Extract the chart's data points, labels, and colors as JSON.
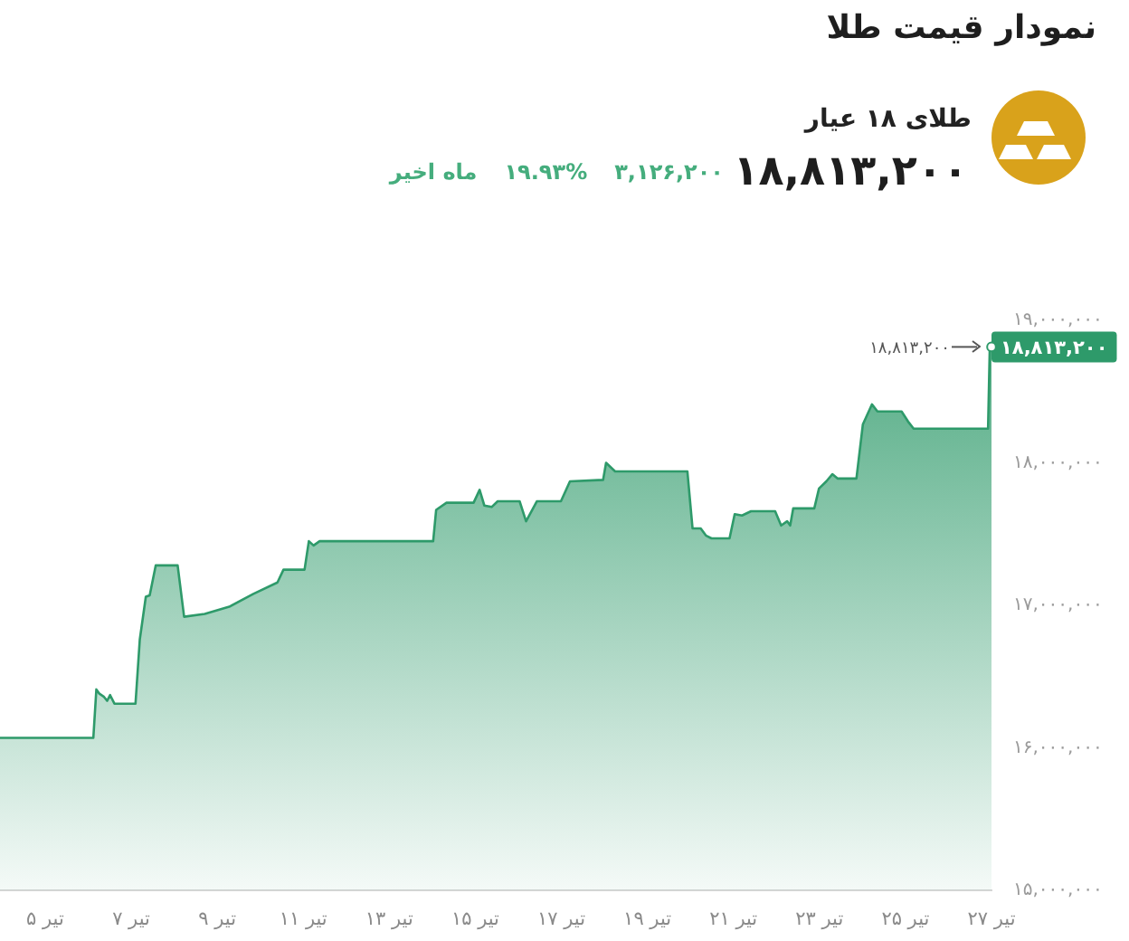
{
  "chart_data": {
    "type": "area",
    "title": "نمودار قیمت طلا",
    "subtitle": "طلای ۱۸ عیار",
    "annotations": [
      "۱۸,۸۱۳,۲۰۰",
      "۳,۱۲۶,۲۰۰",
      "۱۹.۹۳%",
      "ماه اخیر"
    ],
    "x": [
      3.95,
      6.12,
      6.19,
      6.26,
      6.36,
      6.44,
      6.51,
      6.61,
      7.1,
      7.2,
      7.34,
      7.43,
      7.57,
      8.08,
      8.23,
      8.71,
      9.28,
      9.84,
      10.4,
      10.54,
      11.03,
      11.13,
      11.24,
      11.38,
      14.02,
      14.09,
      14.33,
      14.96,
      15.1,
      15.21,
      15.38,
      15.52,
      16.03,
      16.18,
      16.43,
      16.99,
      17.2,
      17.97,
      18.04,
      18.25,
      19.93,
      20.05,
      20.24,
      20.36,
      20.49,
      20.91,
      21.03,
      21.2,
      21.41,
      21.97,
      22.11,
      22.25,
      22.32,
      22.39,
      22.88,
      22.99,
      23.16,
      23.3,
      23.42,
      23.86,
      24.01,
      24.22,
      24.35,
      24.91,
      25.06,
      25.19,
      26.92,
      26.96,
      27
    ],
    "series": [
      {
        "color": "#2e9a6a",
        "values": [
          16070000,
          16070000,
          16410000,
          16380000,
          16360000,
          16330000,
          16370000,
          16310000,
          16310000,
          16760000,
          17060000,
          17070000,
          17280000,
          17280000,
          16920000,
          16940000,
          16990000,
          17080000,
          17160000,
          17250000,
          17250000,
          17450000,
          17420000,
          17450000,
          17450000,
          17670000,
          17720000,
          17720000,
          17810000,
          17700000,
          17690000,
          17730000,
          17730000,
          17590000,
          17730000,
          17730000,
          17870000,
          17880000,
          18000000,
          17940000,
          17940000,
          17540000,
          17540000,
          17490000,
          17470000,
          17470000,
          17640000,
          17630000,
          17660000,
          17660000,
          17560000,
          17590000,
          17560000,
          17680000,
          17680000,
          17820000,
          17870000,
          17920000,
          17890000,
          17890000,
          18270000,
          18410000,
          18360000,
          18360000,
          18290000,
          18240000,
          18240000,
          18813200,
          18813200
        ],
        "value_labels": [
          null,
          null,
          null,
          null,
          null,
          null,
          null,
          null,
          null,
          null,
          null,
          null,
          null,
          null,
          null,
          null,
          null,
          null,
          null,
          null,
          null,
          null,
          null,
          null,
          null,
          null,
          null,
          null,
          null,
          null,
          null,
          null,
          null,
          null,
          null,
          null,
          null,
          null,
          null,
          null,
          null,
          null,
          null,
          null,
          null,
          null,
          null,
          null,
          null,
          null,
          null,
          null,
          null,
          null,
          null,
          null,
          null,
          null,
          null,
          null,
          null,
          null,
          null,
          null,
          null,
          null,
          null,
          null,
          "۱۸,۸۱۳,۲۰۰"
        ]
      }
    ],
    "xlim": [
      3.95,
      27
    ],
    "xticks": [
      {
        "value": 5,
        "label": "۵ تیر"
      },
      {
        "value": 7,
        "label": "۷ تیر"
      },
      {
        "value": 9,
        "label": "۹ تیر"
      },
      {
        "value": 11,
        "label": "۱۱ تیر"
      },
      {
        "value": 13,
        "label": "۱۳ تیر"
      },
      {
        "value": 15,
        "label": "۱۵ تیر"
      },
      {
        "value": 17,
        "label": "۱۷ تیر"
      },
      {
        "value": 19,
        "label": "۱۹ تیر"
      },
      {
        "value": 21,
        "label": "۲۱ تیر"
      },
      {
        "value": 23,
        "label": "۲۳ تیر"
      },
      {
        "value": 25,
        "label": "۲۵ تیر"
      },
      {
        "value": 27,
        "label": "۲۷ تیر"
      }
    ],
    "ylim": [
      15000000,
      19000000
    ],
    "yticks": [
      {
        "value": 15000000,
        "label": "۱۵,۰۰۰,۰۰۰"
      },
      {
        "value": 16000000,
        "label": "۱۶,۰۰۰,۰۰۰"
      },
      {
        "value": 17000000,
        "label": "۱۷,۰۰۰,۰۰۰"
      },
      {
        "value": 18000000,
        "label": "۱۸,۰۰۰,۰۰۰"
      },
      {
        "value": 19000000,
        "label": "۱۹,۰۰۰,۰۰۰"
      }
    ],
    "ref_lines": [
      {
        "axis": "y",
        "value": 18813200,
        "label": "۱۸,۸۱۳,۲۰۰",
        "color": "#555555"
      }
    ]
  }
}
